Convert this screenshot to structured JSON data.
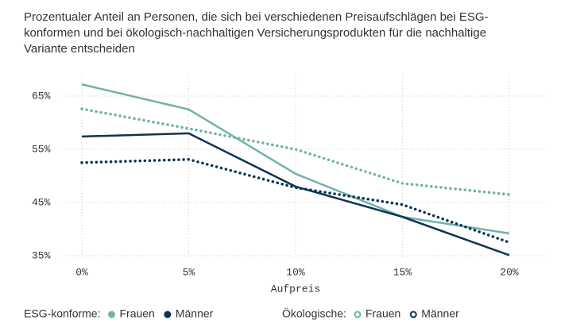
{
  "chart_data": {
    "type": "line",
    "subtitle": [
      "Prozentualer Anteil an Personen, die sich bei verschiedenen Preisaufschlägen bei ESG-",
      "konformen und bei ökologisch-nachhaltigen Versicherungsprodukten für die nachhaltige",
      "Variante entscheiden"
    ],
    "x_label": "Aufpreis",
    "x": [
      0,
      5,
      10,
      15,
      20
    ],
    "xlim": [
      0,
      20
    ],
    "xticks": [
      {
        "value": 0,
        "label": "0%"
      },
      {
        "value": 5,
        "label": "5%"
      },
      {
        "value": 10,
        "label": "10%"
      },
      {
        "value": 15,
        "label": "15%"
      },
      {
        "value": 20,
        "label": "20%"
      }
    ],
    "ylim": [
      35,
      65
    ],
    "yticks": [
      {
        "value": 35,
        "label": "35%"
      },
      {
        "value": 45,
        "label": "45%"
      },
      {
        "value": 55,
        "label": "55%"
      },
      {
        "value": 65,
        "label": "65%"
      }
    ],
    "grid": true,
    "groups": [
      {
        "name": "ESG-konforme:",
        "style": "solid",
        "series": [
          {
            "name": "Frauen",
            "color": "#6fb3a9",
            "values": [
              67.2,
              62.5,
              50.4,
              42.3,
              39.2
            ]
          },
          {
            "name": "Männer",
            "color": "#0d3354",
            "values": [
              57.4,
              58.0,
              48.0,
              42.3,
              35.1
            ]
          }
        ]
      },
      {
        "name": "Ökologische:",
        "style": "dotted",
        "series": [
          {
            "name": "Frauen",
            "color": "#6fb3a9",
            "values": [
              62.6,
              58.9,
              55.0,
              48.6,
              46.5
            ]
          },
          {
            "name": "Männer",
            "color": "#0d3354",
            "values": [
              52.5,
              53.1,
              47.8,
              44.6,
              37.5
            ]
          }
        ]
      }
    ]
  }
}
